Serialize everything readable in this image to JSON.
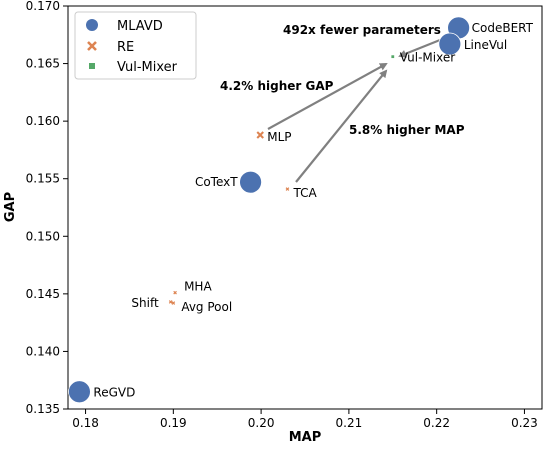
{
  "chart_data": {
    "type": "scatter",
    "xlabel": "MAP",
    "ylabel": "GAP",
    "xlim": [
      0.178,
      0.232
    ],
    "ylim": [
      0.135,
      0.17
    ],
    "x_ticks": [
      0.18,
      0.19,
      0.2,
      0.21,
      0.22,
      0.23
    ],
    "y_ticks": [
      0.135,
      0.14,
      0.145,
      0.15,
      0.155,
      0.16,
      0.165,
      0.17
    ],
    "grid": false,
    "legend_position": "top-left",
    "series": [
      {
        "name": "MLAVD",
        "marker": "circle",
        "color": "#4c72b0",
        "points": [
          {
            "label": "CodeBERT",
            "x": 0.2225,
            "y": 0.1681,
            "size": "large"
          },
          {
            "label": "LineVul",
            "x": 0.2215,
            "y": 0.1667,
            "size": "large"
          },
          {
            "label": "CoTexT",
            "x": 0.1988,
            "y": 0.1547,
            "size": "large"
          },
          {
            "label": "ReGVD",
            "x": 0.1793,
            "y": 0.1365,
            "size": "large"
          }
        ]
      },
      {
        "name": "RE",
        "marker": "x",
        "color": "#dd8452",
        "points": [
          {
            "label": "MLP",
            "x": 0.1999,
            "y": 0.1588,
            "size": "small"
          },
          {
            "label": "TCA",
            "x": 0.203,
            "y": 0.1541,
            "size": "tiny"
          },
          {
            "label": "MHA",
            "x": 0.1902,
            "y": 0.1451,
            "size": "tiny"
          },
          {
            "label": "Shift",
            "x": 0.1897,
            "y": 0.1443,
            "size": "tiny"
          },
          {
            "label": "Avg Pool",
            "x": 0.19,
            "y": 0.1442,
            "size": "tiny"
          }
        ]
      },
      {
        "name": "Vul-Mixer",
        "marker": "square",
        "color": "#55a868",
        "points": [
          {
            "label": "Vul-Mixer",
            "x": 0.215,
            "y": 0.1656,
            "size": "tiny"
          }
        ]
      }
    ],
    "annotations": [
      {
        "text": "492x fewer parameters"
      },
      {
        "text": "4.2% higher GAP"
      },
      {
        "text": "5.8% higher MAP"
      }
    ]
  }
}
